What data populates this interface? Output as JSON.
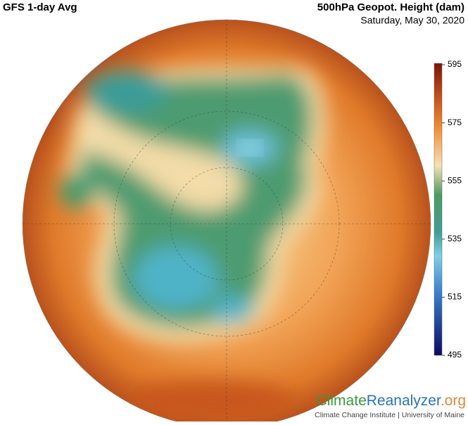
{
  "header": {
    "title": "GFS 1-day Avg",
    "variable": "500hPa Geopot. Height (dam)",
    "date": "Saturday, May 30, 2020"
  },
  "colorbar": {
    "lim": [
      495,
      595
    ],
    "ticks": [
      595,
      575,
      555,
      535,
      515,
      495
    ]
  },
  "logo": {
    "parts": [
      "Climate",
      "Reanalyzer",
      ".org"
    ],
    "tagline": "Climate Change Institute | University of Maine"
  }
}
